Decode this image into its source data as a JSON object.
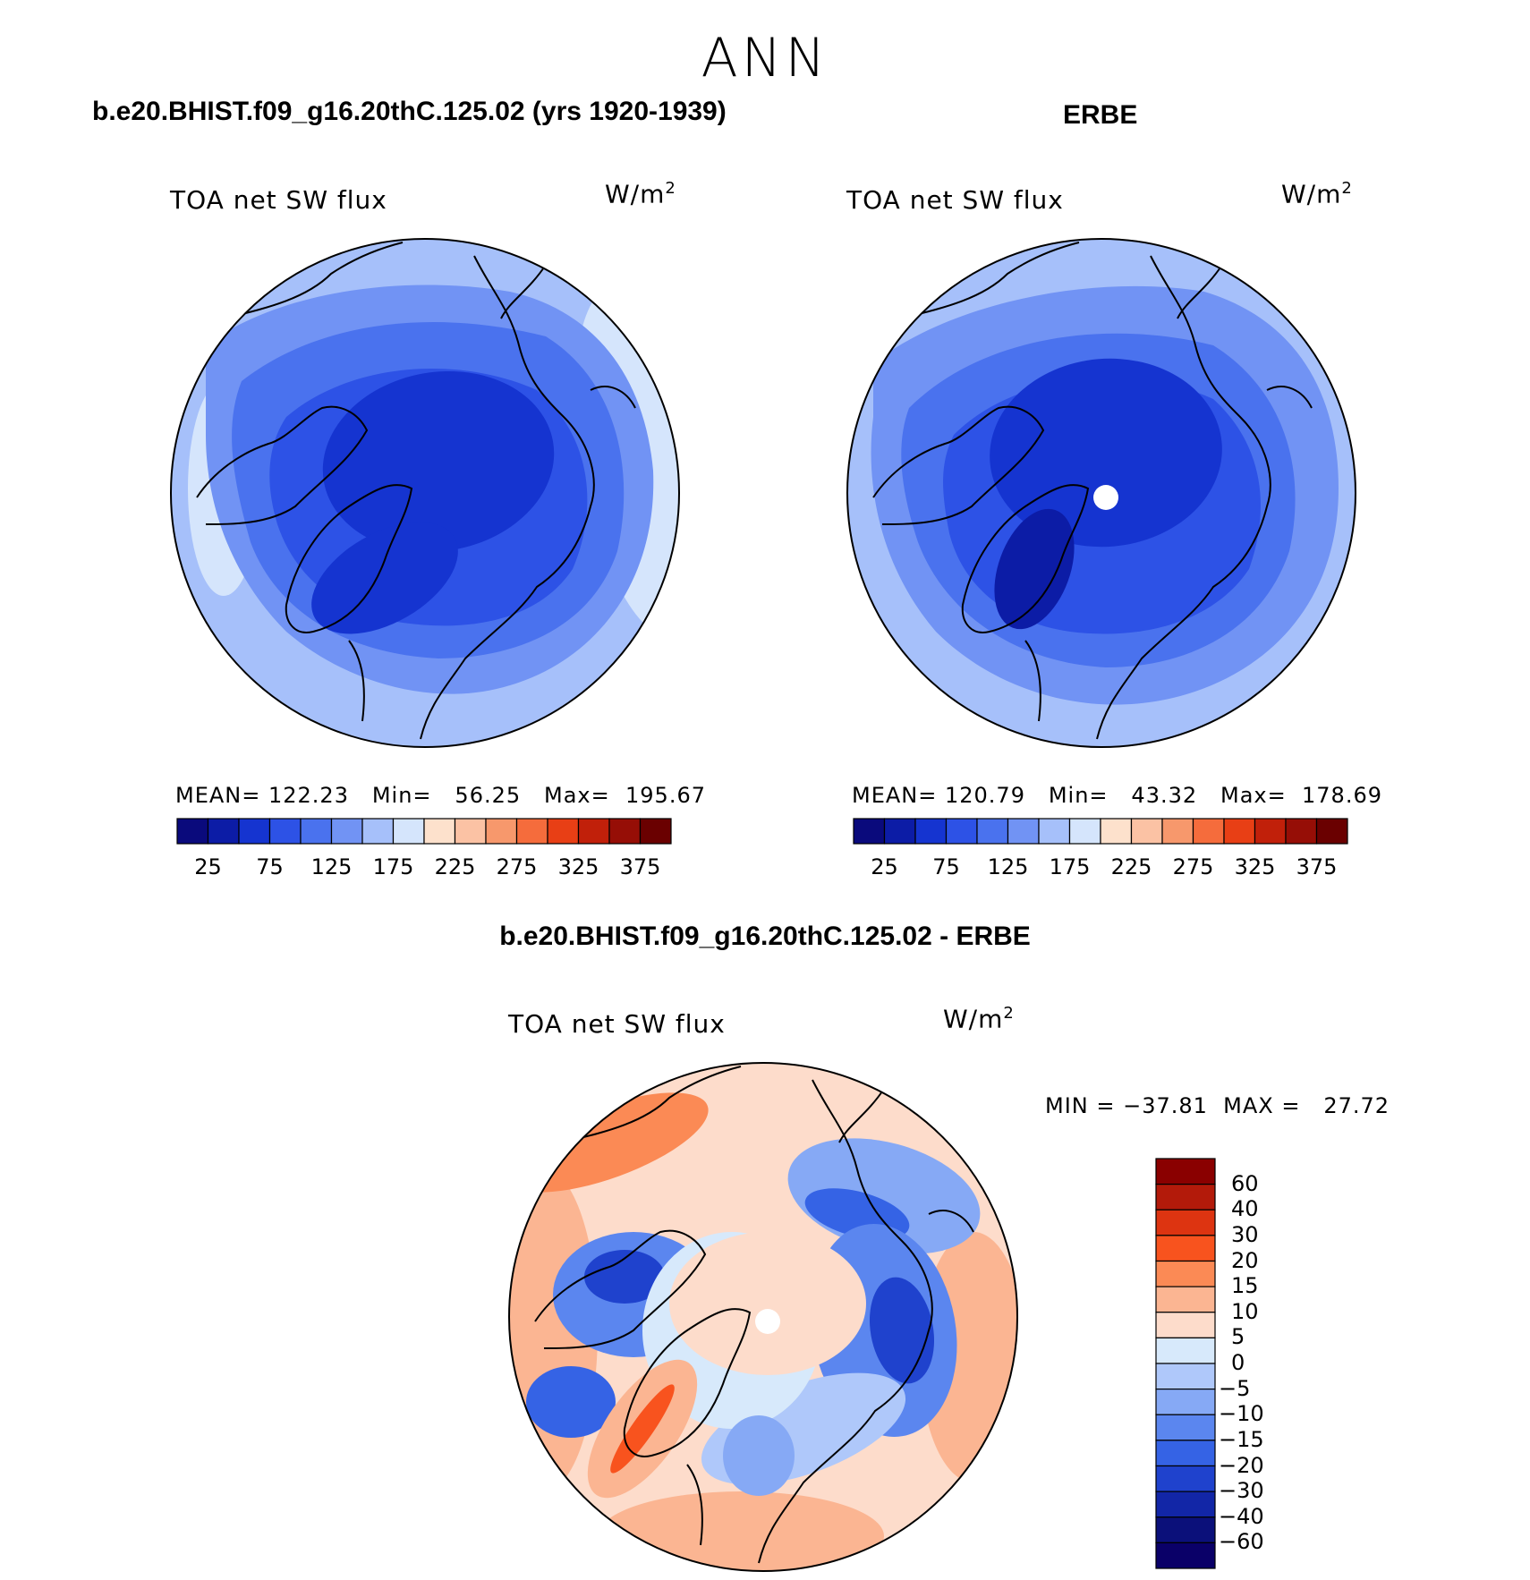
{
  "figure": {
    "season": "ANN",
    "diff_title": "b.e20.BHIST.f09_g16.20thC.125.02 - ERBE"
  },
  "panels": [
    {
      "title": "b.e20.BHIST.f09_g16.20thC.125.02 (yrs 1920-1939)",
      "variable": "TOA net SW flux",
      "units": "W/m",
      "units_exp": "2",
      "stats": "MEAN= 122.23   Min=   56.25   Max=  195.67"
    },
    {
      "title": "ERBE",
      "variable": "TOA net SW flux",
      "units": "W/m",
      "units_exp": "2",
      "stats": "MEAN= 120.79   Min=   43.32   Max=  178.69"
    },
    {
      "title": "",
      "variable": "TOA net SW flux",
      "units": "W/m",
      "units_exp": "2",
      "stats": "MIN = −37.81  MAX =   27.72"
    }
  ],
  "chart_data": [
    {
      "type": "heatmap",
      "title": "b.e20.BHIST.f09_g16.20thC.125.02 (yrs 1920-1939)",
      "projection": "north polar stereographic",
      "variable": "TOA net SW flux",
      "units": "W/m2",
      "mean": 122.23,
      "min": 56.25,
      "max": 195.67,
      "colorbar": {
        "orientation": "horizontal",
        "levels": [
          25,
          50,
          75,
          100,
          125,
          150,
          175,
          200,
          225,
          250,
          275,
          300,
          325,
          350,
          375
        ],
        "tick_labels": [
          "25",
          "75",
          "125",
          "175",
          "225",
          "275",
          "325",
          "375"
        ],
        "colors": [
          "#0a0a7c",
          "#0c1ca6",
          "#1534d0",
          "#2d52e6",
          "#4a72ee",
          "#7193f4",
          "#a6c0fa",
          "#d5e5fc",
          "#fde1cc",
          "#fbc2a4",
          "#f7986c",
          "#f56c3c",
          "#e83f15",
          "#c1200a",
          "#960e06",
          "#6a0000"
        ]
      }
    },
    {
      "type": "heatmap",
      "title": "ERBE",
      "projection": "north polar stereographic",
      "variable": "TOA net SW flux",
      "units": "W/m2",
      "mean": 120.79,
      "min": 43.32,
      "max": 178.69,
      "colorbar": {
        "orientation": "horizontal",
        "levels": [
          25,
          50,
          75,
          100,
          125,
          150,
          175,
          200,
          225,
          250,
          275,
          300,
          325,
          350,
          375
        ],
        "tick_labels": [
          "25",
          "75",
          "125",
          "175",
          "225",
          "275",
          "325",
          "375"
        ],
        "colors": [
          "#0a0a7c",
          "#0c1ca6",
          "#1534d0",
          "#2d52e6",
          "#4a72ee",
          "#7193f4",
          "#a6c0fa",
          "#d5e5fc",
          "#fde1cc",
          "#fbc2a4",
          "#f7986c",
          "#f56c3c",
          "#e83f15",
          "#c1200a",
          "#960e06",
          "#6a0000"
        ]
      }
    },
    {
      "type": "heatmap",
      "title": "b.e20.BHIST.f09_g16.20thC.125.02 - ERBE",
      "projection": "north polar stereographic",
      "variable": "TOA net SW flux",
      "units": "W/m2",
      "min": -37.81,
      "max": 27.72,
      "colorbar": {
        "orientation": "vertical",
        "levels": [
          60,
          40,
          30,
          20,
          15,
          10,
          5,
          0,
          -5,
          -10,
          -15,
          -20,
          -30,
          -40,
          -60
        ],
        "tick_labels": [
          "60",
          "40",
          "30",
          "20",
          "15",
          "10",
          "5",
          "0",
          "−5",
          "−10",
          "−15",
          "−20",
          "−30",
          "−40",
          "−60"
        ],
        "colors": [
          "#8a0000",
          "#b31a0a",
          "#dd3411",
          "#f8531e",
          "#fb8a55",
          "#fbb592",
          "#fddccb",
          "#d7e9fb",
          "#afc8fa",
          "#86a9f5",
          "#5b86ef",
          "#3563e5",
          "#1f42cd",
          "#1226a7",
          "#0b107a",
          "#0a0068"
        ]
      }
    }
  ]
}
